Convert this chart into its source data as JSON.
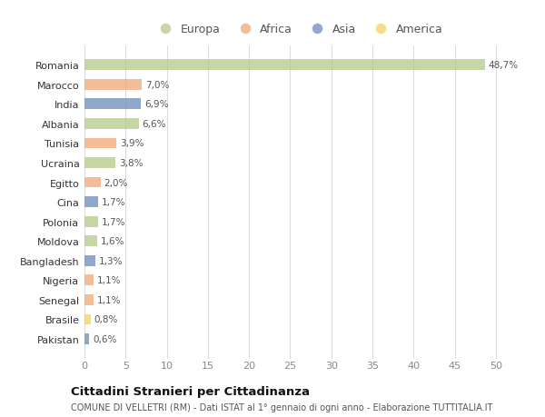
{
  "countries": [
    "Romania",
    "Marocco",
    "India",
    "Albania",
    "Tunisia",
    "Ucraina",
    "Egitto",
    "Cina",
    "Polonia",
    "Moldova",
    "Bangladesh",
    "Nigeria",
    "Senegal",
    "Brasile",
    "Pakistan"
  ],
  "values": [
    48.7,
    7.0,
    6.9,
    6.6,
    3.9,
    3.8,
    2.0,
    1.7,
    1.7,
    1.6,
    1.3,
    1.1,
    1.1,
    0.8,
    0.6
  ],
  "labels": [
    "48,7%",
    "7,0%",
    "6,9%",
    "6,6%",
    "3,9%",
    "3,8%",
    "2,0%",
    "1,7%",
    "1,7%",
    "1,6%",
    "1,3%",
    "1,1%",
    "1,1%",
    "0,8%",
    "0,6%"
  ],
  "colors": [
    "#b5c98a",
    "#f0a875",
    "#6b8cba",
    "#b5c98a",
    "#f0a875",
    "#b5c98a",
    "#f0a875",
    "#6b8cba",
    "#b5c98a",
    "#b5c98a",
    "#6b8cba",
    "#f0a875",
    "#f0a875",
    "#f5d060",
    "#6b8cba"
  ],
  "legend_labels": [
    "Europa",
    "Africa",
    "Asia",
    "America"
  ],
  "legend_colors": [
    "#b5c98a",
    "#f0a875",
    "#6b8cba",
    "#f5d060"
  ],
  "xlim": [
    0,
    52
  ],
  "xticks": [
    0,
    5,
    10,
    15,
    20,
    25,
    30,
    35,
    40,
    45,
    50
  ],
  "title": "Cittadini Stranieri per Cittadinanza",
  "subtitle": "COMUNE DI VELLETRI (RM) - Dati ISTAT al 1° gennaio di ogni anno - Elaborazione TUTTITALIA.IT",
  "bg_color": "#ffffff",
  "grid_color": "#dddddd",
  "bar_alpha": 0.75
}
